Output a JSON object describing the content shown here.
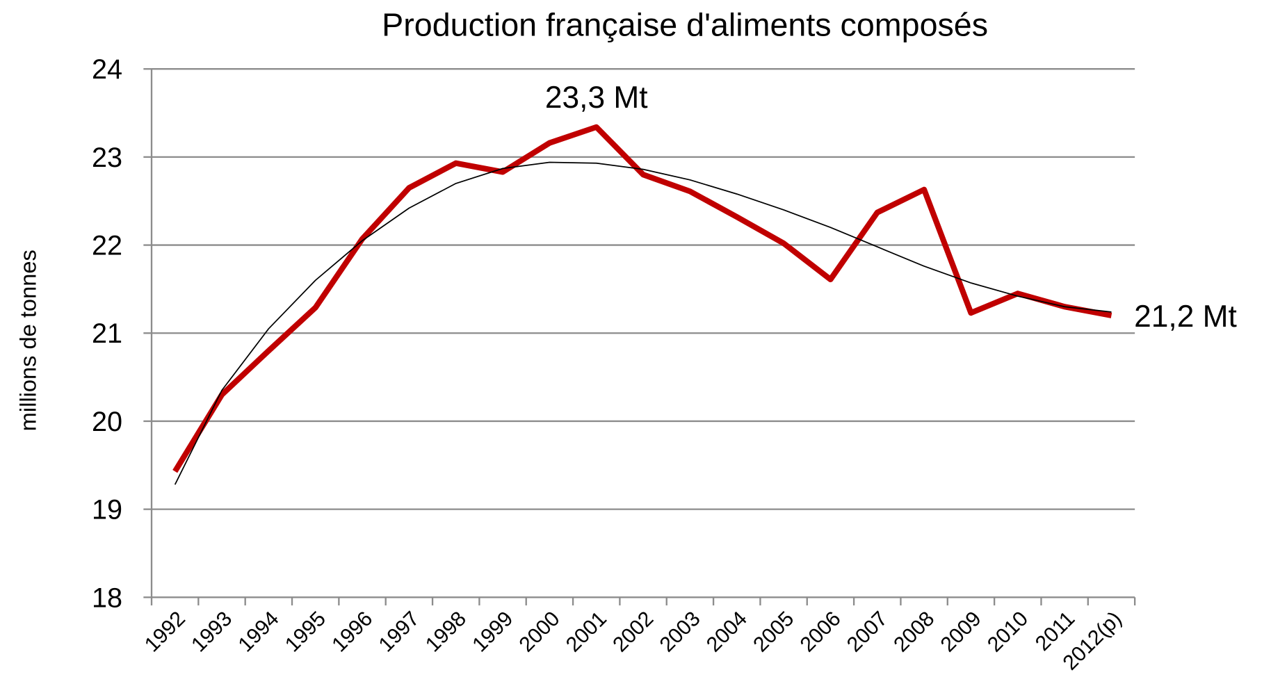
{
  "chart_data": {
    "type": "line",
    "title": "Production française d'aliments composés",
    "y_label": "millions de tonnes",
    "categories": [
      "1992",
      "1993",
      "1994",
      "1995",
      "1996",
      "1997",
      "1998",
      "1999",
      "2000",
      "2001",
      "2002",
      "2003",
      "2004",
      "2005",
      "2006",
      "2007",
      "2008",
      "2009",
      "2010",
      "2011",
      "2012(p)"
    ],
    "series": [
      {
        "color": "#c00000",
        "values": [
          19.43,
          20.3,
          20.8,
          21.29,
          22.07,
          22.65,
          22.93,
          22.83,
          23.16,
          23.34,
          22.8,
          22.61,
          22.32,
          22.02,
          21.61,
          22.37,
          22.63,
          21.23,
          21.45,
          21.3,
          21.2
        ]
      },
      {
        "color": "#000000",
        "values": [
          19.28,
          20.35,
          21.05,
          21.6,
          22.05,
          22.42,
          22.7,
          22.87,
          22.94,
          22.93,
          22.86,
          22.74,
          22.58,
          22.4,
          22.2,
          21.98,
          21.76,
          21.57,
          21.42,
          21.3,
          21.24
        ]
      }
    ],
    "annotations": [
      {
        "text": "23,3 Mt",
        "index": 9
      },
      {
        "text": "21,2 Mt",
        "index": 20
      }
    ],
    "ylim": [
      18,
      24
    ],
    "yticks": [
      18,
      19,
      20,
      21,
      22,
      23,
      24
    ],
    "grid": true
  }
}
